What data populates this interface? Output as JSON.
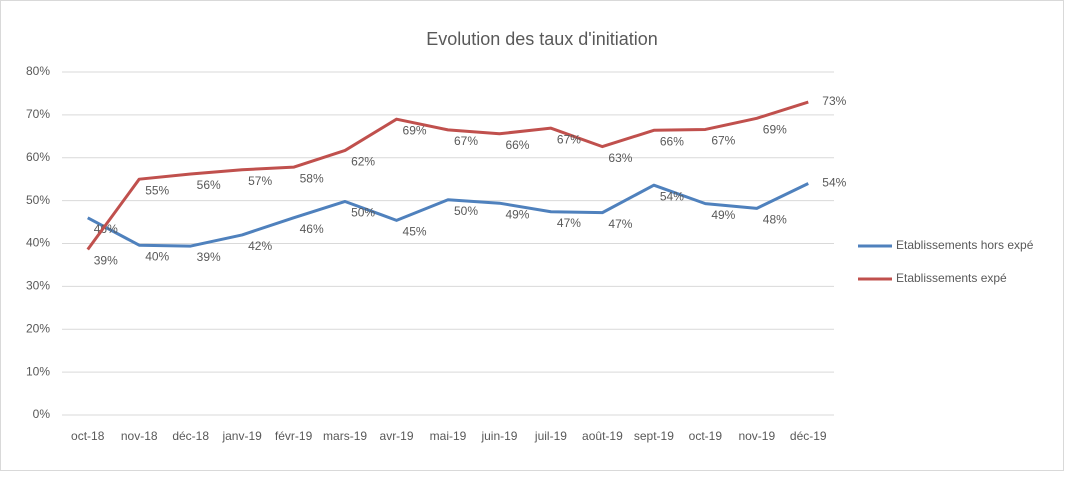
{
  "chart_data": {
    "type": "line",
    "title": "Evolution des taux d'initiation",
    "categories": [
      "oct-18",
      "nov-18",
      "déc-18",
      "janv-19",
      "févr-19",
      "mars-19",
      "avr-19",
      "mai-19",
      "juin-19",
      "juil-19",
      "août-19",
      "sept-19",
      "oct-19",
      "nov-19",
      "déc-19"
    ],
    "series": [
      {
        "name": "Etablissements hors expé",
        "color": "#4f81bd",
        "values": [
          46,
          39.6,
          39.4,
          42,
          46,
          49.8,
          45.4,
          50.2,
          49.4,
          47.4,
          47.2,
          53.6,
          49.3,
          48.2,
          54
        ],
        "value_labels": [
          "46%",
          "40%",
          "39%",
          "42%",
          "46%",
          "50%",
          "45%",
          "50%",
          "49%",
          "47%",
          "47%",
          "54%",
          "49%",
          "48%",
          "54%"
        ]
      },
      {
        "name": "Etablissements expé",
        "color": "#c0504d",
        "values": [
          38.6,
          55,
          56.2,
          57.2,
          57.8,
          61.7,
          69,
          66.5,
          65.6,
          66.9,
          62.6,
          66.4,
          66.6,
          69.2,
          73
        ],
        "value_labels": [
          "39%",
          "55%",
          "56%",
          "57%",
          "58%",
          "62%",
          "69%",
          "67%",
          "66%",
          "67%",
          "63%",
          "66%",
          "67%",
          "69%",
          "73%"
        ]
      }
    ],
    "ylim": [
      0,
      80
    ],
    "yticks": [
      {
        "value": 0,
        "label": "0%"
      },
      {
        "value": 10,
        "label": "10%"
      },
      {
        "value": 20,
        "label": "20%"
      },
      {
        "value": 30,
        "label": "30%"
      },
      {
        "value": 40,
        "label": "40%"
      },
      {
        "value": 50,
        "label": "50%"
      },
      {
        "value": 60,
        "label": "60%"
      },
      {
        "value": 70,
        "label": "70%"
      },
      {
        "value": 80,
        "label": "80%"
      }
    ],
    "grid": true,
    "legend": "right"
  }
}
